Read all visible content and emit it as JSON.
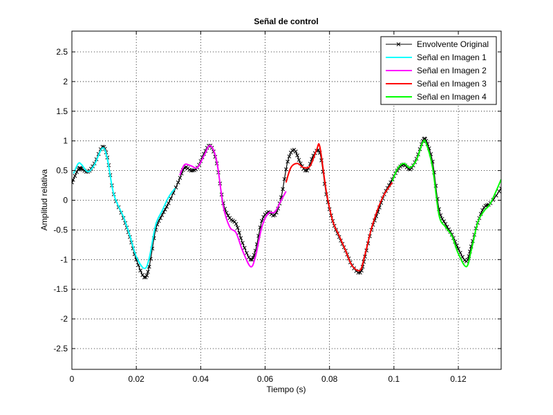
{
  "chart_data": {
    "type": "line",
    "title": "Señal de control",
    "xlabel": "Tiempo (s)",
    "ylabel": "Amplitud relativa",
    "xlim": [
      0,
      0.1333
    ],
    "ylim": [
      -2.85,
      2.85
    ],
    "xticks": [
      0,
      0.02,
      0.04,
      0.06,
      0.08,
      0.1,
      0.12
    ],
    "xtick_labels": [
      "0",
      "0.02",
      "0.04",
      "0.06",
      "0.08",
      "0.1",
      "0.12"
    ],
    "yticks": [
      -2.5,
      -2,
      -1.5,
      -1,
      -0.5,
      0,
      0.5,
      1,
      1.5,
      2,
      2.5
    ],
    "ytick_labels": [
      "-2.5",
      "-2",
      "-1.5",
      "-1",
      "-0.5",
      "0",
      "0.5",
      "1",
      "1.5",
      "2",
      "2.5"
    ],
    "grid": true,
    "legend_position": "top-right",
    "series": [
      {
        "name": "Envolvente Original",
        "color": "#000000",
        "marker": "x",
        "x": [
          0,
          0.002,
          0.003,
          0.005,
          0.007,
          0.0095,
          0.011,
          0.013,
          0.016,
          0.018,
          0.02,
          0.0225,
          0.024,
          0.026,
          0.028,
          0.03,
          0.033,
          0.035,
          0.037,
          0.039,
          0.041,
          0.043,
          0.045,
          0.047,
          0.049,
          0.051,
          0.053,
          0.0555,
          0.057,
          0.059,
          0.061,
          0.063,
          0.065,
          0.067,
          0.069,
          0.071,
          0.073,
          0.075,
          0.077,
          0.079,
          0.081,
          0.083,
          0.085,
          0.087,
          0.0895,
          0.091,
          0.093,
          0.095,
          0.097,
          0.099,
          0.101,
          0.103,
          0.105,
          0.107,
          0.109,
          0.11,
          0.112,
          0.114,
          0.116,
          0.118,
          0.12,
          0.1225,
          0.124,
          0.126,
          0.128,
          0.13,
          0.1333
        ],
        "y": [
          0.3,
          0.52,
          0.53,
          0.48,
          0.62,
          0.9,
          0.72,
          0.1,
          -0.3,
          -0.62,
          -1.0,
          -1.3,
          -1.12,
          -0.5,
          -0.25,
          -0.05,
          0.3,
          0.55,
          0.5,
          0.55,
          0.78,
          0.92,
          0.62,
          -0.05,
          -0.3,
          -0.4,
          -0.72,
          -1.0,
          -0.85,
          -0.35,
          -0.2,
          -0.25,
          0.05,
          0.65,
          0.85,
          0.62,
          0.5,
          0.75,
          0.8,
          0.1,
          -0.35,
          -0.62,
          -0.85,
          -1.1,
          -1.22,
          -0.95,
          -0.5,
          -0.2,
          0.1,
          0.3,
          0.5,
          0.6,
          0.52,
          0.7,
          1.0,
          1.0,
          0.65,
          -0.15,
          -0.4,
          -0.58,
          -0.82,
          -1.03,
          -0.78,
          -0.38,
          -0.12,
          -0.05,
          0.2
        ]
      },
      {
        "name": "Señal en Imagen 1",
        "color": "#00FFFF",
        "x": [
          0.0005,
          0.002,
          0.003,
          0.005,
          0.007,
          0.0095,
          0.011,
          0.013,
          0.016,
          0.018,
          0.02,
          0.0225,
          0.024,
          0.026,
          0.028,
          0.03,
          0.032
        ],
        "y": [
          0.45,
          0.62,
          0.6,
          0.48,
          0.6,
          0.88,
          0.7,
          0.1,
          -0.28,
          -0.6,
          -0.95,
          -1.15,
          -0.98,
          -0.42,
          -0.18,
          0.05,
          0.2
        ]
      },
      {
        "name": "Señal en Imagen 2",
        "color": "#FF00FF",
        "x": [
          0.0335,
          0.035,
          0.037,
          0.039,
          0.041,
          0.043,
          0.045,
          0.047,
          0.049,
          0.051,
          0.053,
          0.0555,
          0.057,
          0.059,
          0.061,
          0.063,
          0.065,
          0.0665
        ],
        "y": [
          0.42,
          0.6,
          0.58,
          0.55,
          0.75,
          0.92,
          0.65,
          -0.1,
          -0.45,
          -0.55,
          -0.85,
          -1.12,
          -0.95,
          -0.45,
          -0.22,
          -0.2,
          0.0,
          0.15
        ]
      },
      {
        "name": "Señal en Imagen 3",
        "color": "#FF0000",
        "x": [
          0.0665,
          0.068,
          0.07,
          0.072,
          0.074,
          0.076,
          0.077,
          0.079,
          0.081,
          0.083,
          0.085,
          0.087,
          0.0895,
          0.091,
          0.093,
          0.095,
          0.097,
          0.0995
        ],
        "y": [
          0.3,
          0.55,
          0.62,
          0.55,
          0.58,
          0.85,
          0.9,
          0.15,
          -0.35,
          -0.6,
          -0.85,
          -1.1,
          -1.18,
          -0.92,
          -0.48,
          -0.15,
          0.1,
          0.3
        ]
      },
      {
        "name": "Señal en Imagen 4",
        "color": "#00FF00",
        "x": [
          0.0995,
          0.101,
          0.103,
          0.105,
          0.107,
          0.109,
          0.11,
          0.112,
          0.114,
          0.116,
          0.118,
          0.12,
          0.1225,
          0.124,
          0.126,
          0.128,
          0.13,
          0.1333
        ],
        "y": [
          0.32,
          0.52,
          0.62,
          0.55,
          0.68,
          0.98,
          0.96,
          0.55,
          -0.25,
          -0.45,
          -0.6,
          -0.9,
          -1.12,
          -0.85,
          -0.38,
          -0.18,
          -0.05,
          0.35
        ]
      }
    ]
  }
}
